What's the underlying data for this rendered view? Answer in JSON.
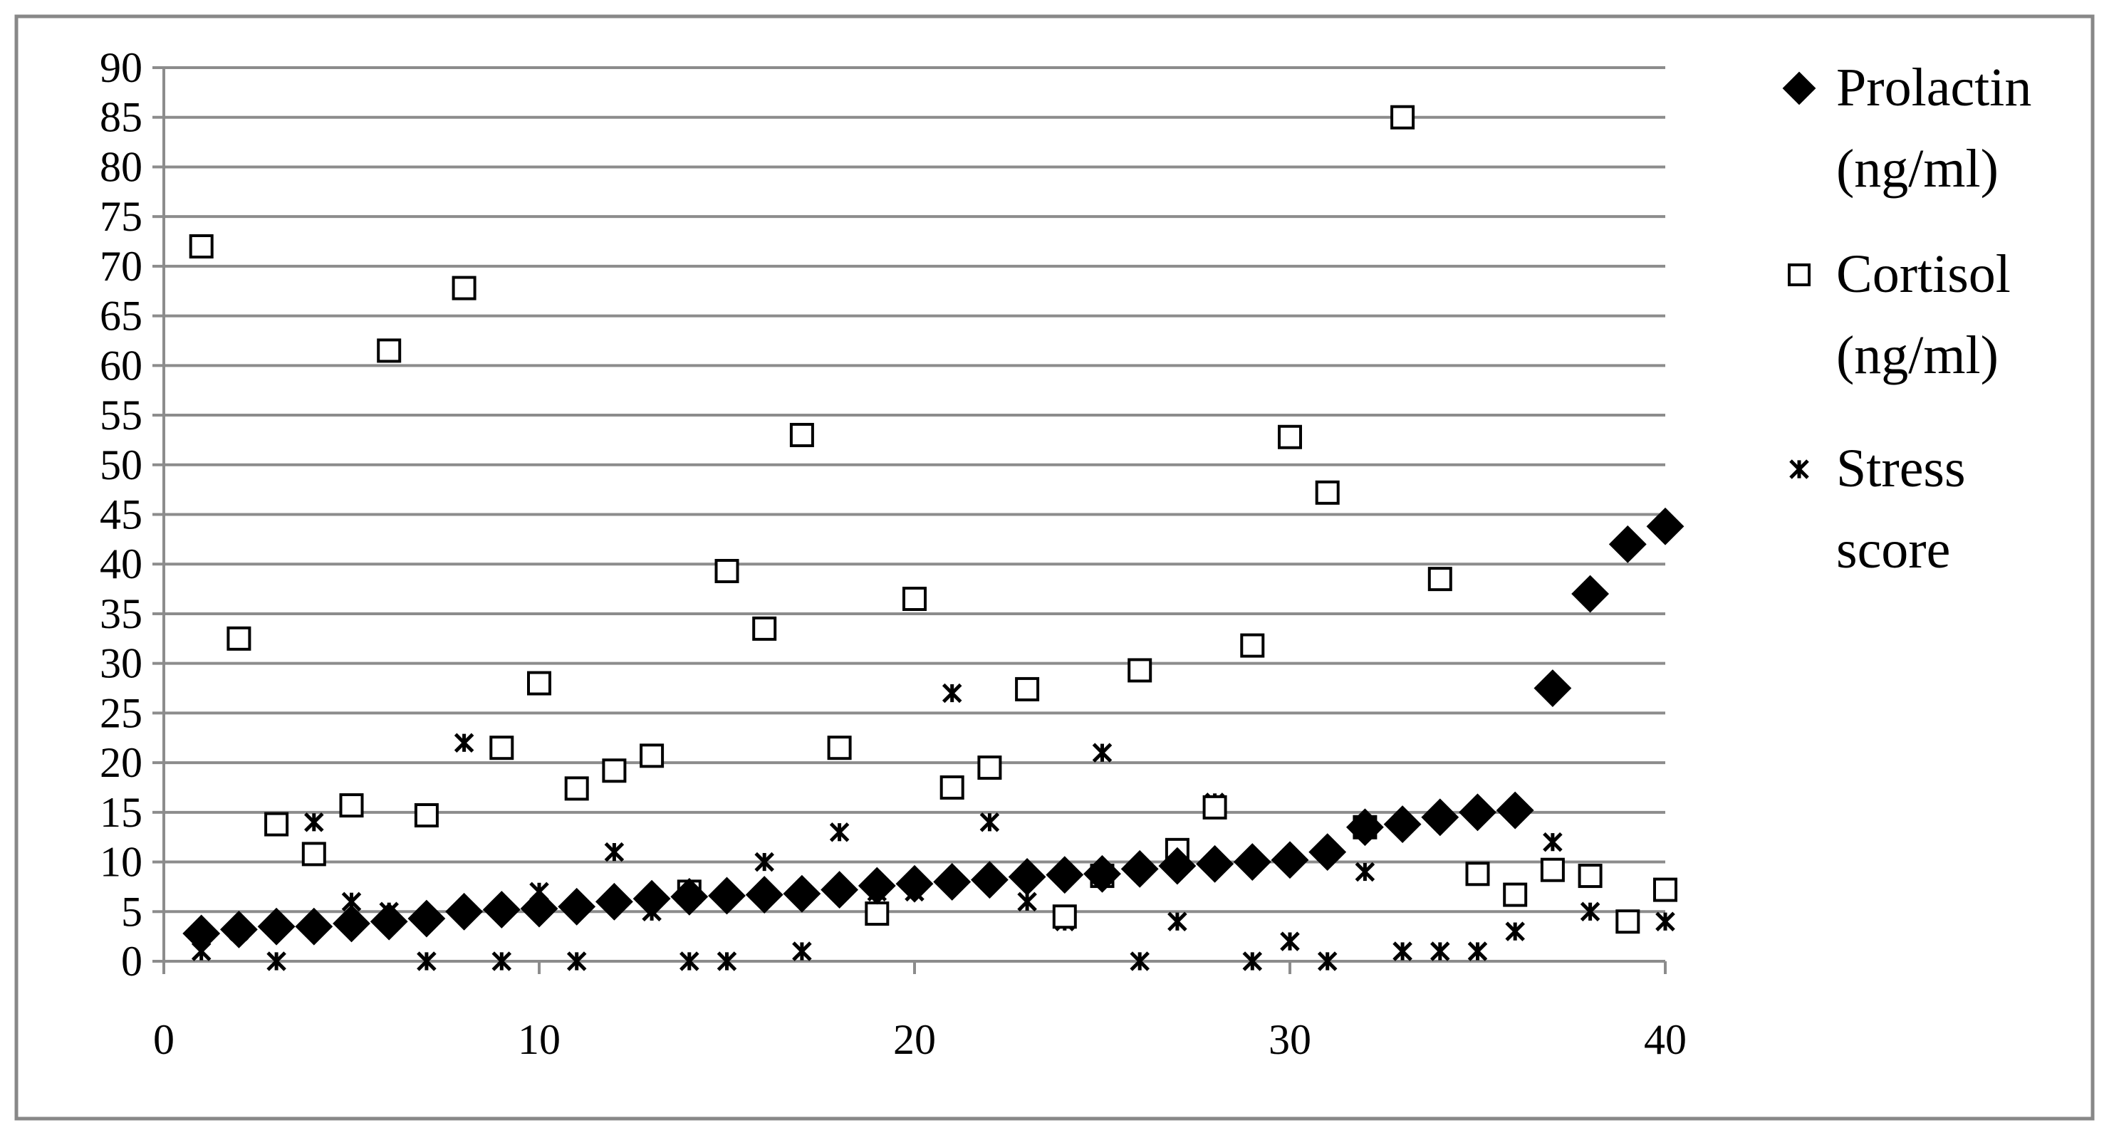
{
  "chart_data": {
    "type": "scatter",
    "title": "",
    "xlabel": "",
    "ylabel": "",
    "xlim": [
      0,
      40
    ],
    "ylim": [
      0,
      90
    ],
    "x_ticks": [
      0,
      10,
      20,
      30,
      40
    ],
    "y_ticks": [
      0,
      5,
      10,
      15,
      20,
      25,
      30,
      35,
      40,
      45,
      50,
      55,
      60,
      65,
      70,
      75,
      80,
      85,
      90
    ],
    "grid": "horizontal",
    "legend_position": "right",
    "series": [
      {
        "name": "Prolactin (ng/ml)",
        "legend_lines": [
          "Prolactin",
          "(ng/ml)"
        ],
        "marker": "diamond",
        "color": "#000000",
        "x": [
          1,
          2,
          3,
          4,
          5,
          6,
          7,
          8,
          9,
          10,
          11,
          12,
          13,
          14,
          15,
          16,
          17,
          18,
          19,
          20,
          21,
          22,
          23,
          24,
          25,
          26,
          27,
          28,
          29,
          30,
          31,
          32,
          33,
          34,
          35,
          36,
          37,
          38,
          39,
          40
        ],
        "y": [
          2.8,
          3.2,
          3.5,
          3.5,
          3.8,
          4,
          4.3,
          5,
          5.2,
          5.3,
          5.5,
          6,
          6.3,
          6.5,
          6.6,
          6.7,
          6.8,
          7.2,
          7.6,
          7.8,
          8,
          8.2,
          8.5,
          8.7,
          8.8,
          9.3,
          9.6,
          9.8,
          10,
          10.2,
          11,
          13.5,
          13.8,
          14.5,
          15,
          15.2,
          27.5,
          37,
          42,
          43.8
        ]
      },
      {
        "name": "Cortisol (ng/ml)",
        "legend_lines": [
          "Cortisol",
          "(ng/ml)"
        ],
        "marker": "square",
        "color": "#000000",
        "x": [
          1,
          2,
          3,
          4,
          5,
          6,
          7,
          8,
          9,
          10,
          11,
          12,
          13,
          14,
          15,
          16,
          17,
          18,
          19,
          20,
          21,
          22,
          23,
          24,
          25,
          26,
          27,
          28,
          29,
          30,
          31,
          32,
          33,
          34,
          35,
          36,
          37,
          38,
          39,
          40
        ],
        "y": [
          72,
          32.5,
          13.8,
          10.8,
          15.7,
          61.5,
          14.7,
          67.8,
          21.5,
          28,
          17.4,
          19.2,
          20.7,
          7,
          39.3,
          33.5,
          53,
          21.5,
          4.8,
          36.5,
          17.5,
          19.5,
          27.4,
          4.5,
          8.6,
          29.3,
          11.2,
          15.5,
          31.8,
          52.8,
          47.2,
          13.5,
          85,
          38.5,
          8.8,
          6.7,
          9.2,
          8.6,
          4,
          7.2
        ]
      },
      {
        "name": "Stress score",
        "legend_lines": [
          "Stress",
          "score"
        ],
        "marker": "asterisk",
        "color": "#000000",
        "x": [
          1,
          2,
          3,
          4,
          5,
          6,
          7,
          8,
          9,
          10,
          11,
          12,
          13,
          14,
          15,
          16,
          17,
          18,
          19,
          20,
          21,
          22,
          23,
          24,
          25,
          26,
          27,
          28,
          29,
          30,
          31,
          32,
          33,
          34,
          35,
          36,
          37,
          38,
          39,
          40
        ],
        "y": [
          1,
          3,
          0,
          14,
          6,
          5,
          0,
          22,
          0,
          7,
          0,
          11,
          5,
          0,
          0,
          10,
          1,
          13,
          7,
          7,
          27,
          14,
          6,
          4,
          21,
          0,
          4,
          16,
          0,
          2,
          0,
          9,
          1,
          1,
          1,
          3,
          12,
          5,
          4,
          4
        ]
      }
    ]
  }
}
